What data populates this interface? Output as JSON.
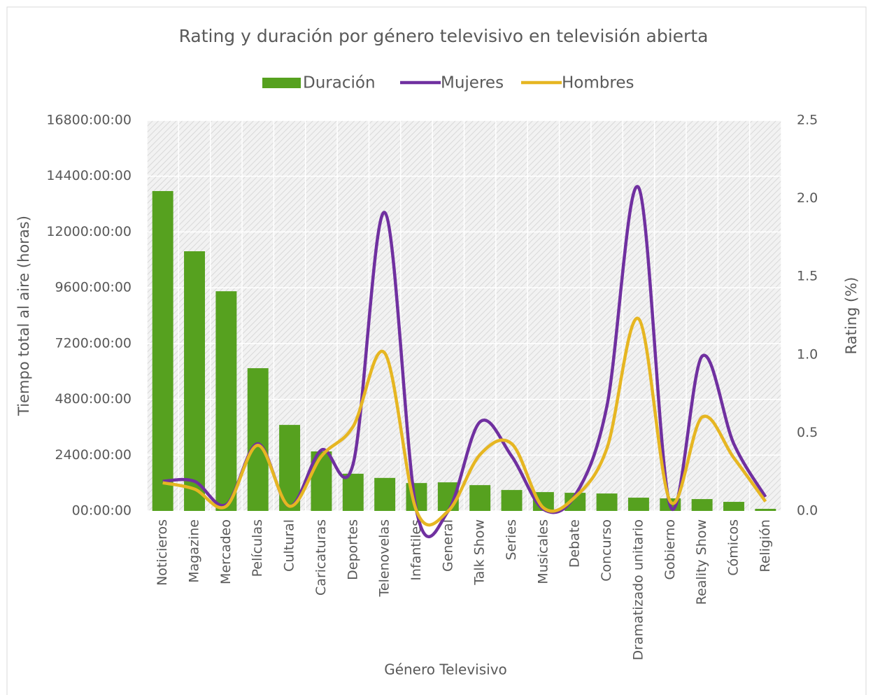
{
  "chart_data": {
    "type": "bar-line",
    "title": "Rating y duración por género televisivo en televisión abierta",
    "x_label": "Género Televisivo",
    "y_label": "Tiempo total al aire (horas)",
    "y2_label": "Rating (%)",
    "categories": [
      "Noticieros",
      "Magazine",
      "Mercadeo",
      "Películas",
      "Cultural",
      "Caricaturas",
      "Deportes",
      "Telenovelas",
      "Infantiles",
      "General",
      "Talk Show",
      "Series",
      "Musicales",
      "Debate",
      "Concurso",
      "Dramatizado unitario",
      "Gobierno",
      "Reality Show",
      "Cómicos",
      "Religión"
    ],
    "series": [
      {
        "name": "Duración",
        "color": "#56a11f",
        "type": "bar",
        "values": [
          13760,
          11170,
          9450,
          6140,
          3700,
          2560,
          1600,
          1420,
          1200,
          1230,
          1110,
          900,
          810,
          780,
          750,
          570,
          540,
          510,
          390,
          90
        ]
      },
      {
        "name": "Mujeres",
        "color": "#7030a0",
        "type": "line",
        "axis": "y2",
        "values": [
          0.19,
          0.19,
          0.04,
          0.43,
          0.03,
          0.39,
          0.3,
          1.91,
          0.0,
          0.0,
          0.57,
          0.35,
          0.01,
          0.1,
          0.67,
          2.07,
          0.03,
          0.99,
          0.43,
          0.09
        ]
      },
      {
        "name": "Hombres",
        "color": "#e6b622",
        "type": "line",
        "axis": "y2",
        "values": [
          0.18,
          0.14,
          0.03,
          0.42,
          0.03,
          0.35,
          0.54,
          1.01,
          0.0,
          0.0,
          0.36,
          0.43,
          0.02,
          0.09,
          0.4,
          1.23,
          0.06,
          0.6,
          0.34,
          0.06
        ]
      }
    ],
    "ylim": [
      0,
      16800
    ],
    "yticks": [
      {
        "value": 0,
        "label": "00:00:00"
      },
      {
        "value": 2400,
        "label": "2400:00:00"
      },
      {
        "value": 4800,
        "label": "4800:00:00"
      },
      {
        "value": 7200,
        "label": "7200:00:00"
      },
      {
        "value": 9600,
        "label": "9600:00:00"
      },
      {
        "value": 12000,
        "label": "12000:00:00"
      },
      {
        "value": 14400,
        "label": "14400:00:00"
      },
      {
        "value": 16800,
        "label": "16800:00:00"
      }
    ],
    "y2lim": [
      0,
      2.5
    ],
    "y2ticks": [
      {
        "value": 0,
        "label": "0.0"
      },
      0.5,
      {
        "value": 1,
        "label": "1.0"
      },
      1.5,
      {
        "value": 2,
        "label": "2.0"
      },
      2.5
    ],
    "grid": true,
    "legend": "top",
    "smooth": true
  }
}
